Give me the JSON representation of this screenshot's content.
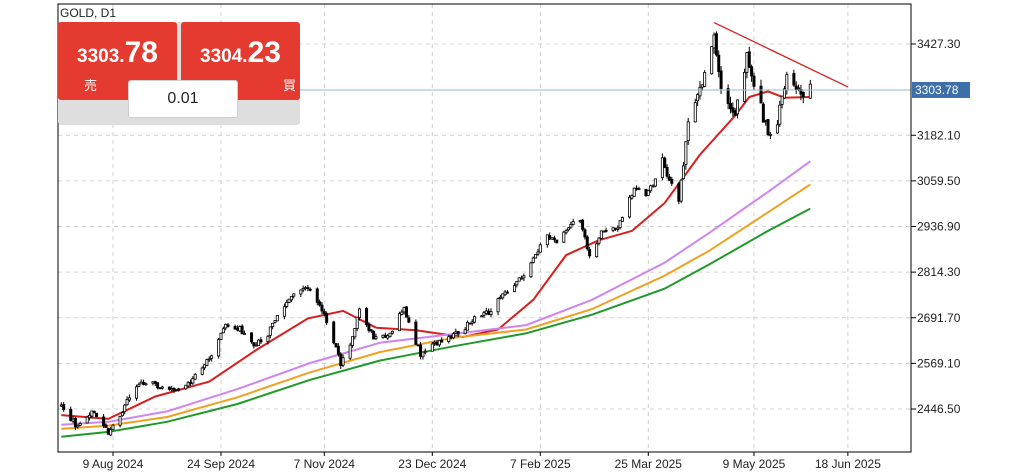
{
  "symbol_label": "GOLD, D1",
  "trade_panel": {
    "sell_price_small": "3303.",
    "sell_price_big": "78",
    "sell_label": "売",
    "buy_price_small": "3304.",
    "buy_price_big": "23",
    "buy_label": "買",
    "lot_size": "0.01"
  },
  "chart_data": {
    "type": "candlestick",
    "symbol": "GOLD",
    "timeframe": "D1",
    "y_tick_labels": [
      "3427.30",
      "3182.10",
      "3059.50",
      "2936.90",
      "2814.30",
      "2691.70",
      "2569.10",
      "2446.50"
    ],
    "y_ticks": [
      3427.3,
      3182.1,
      3059.5,
      2936.9,
      2814.3,
      2691.7,
      2569.1,
      2446.5
    ],
    "x_tick_labels": [
      "9 Aug 2024",
      "24 Sep 2024",
      "7 Nov 2024",
      "23 Dec 2024",
      "7 Feb 2025",
      "25 Mar 2025",
      "9 May 2025",
      "18 Jun 2025"
    ],
    "ylim": [
      2383,
      3481
    ],
    "current_price": 3303.78,
    "current_price_label": "3303.78",
    "colors": {
      "bull_body": "#ffffff",
      "bear_body": "#000000",
      "ma_red": "#d81e1e",
      "ma_violet": "#cf85ef",
      "ma_orange": "#f0a020",
      "ma_green": "#1f9a2a",
      "trendline": "#d81e1e",
      "price_line": "#9cb6cf",
      "price_tag": "#3d6fa8"
    },
    "price_path": [
      [
        "2024-07-18",
        2455
      ],
      [
        "2024-07-25",
        2398
      ],
      [
        "2024-07-31",
        2445
      ],
      [
        "2024-08-07",
        2382
      ],
      [
        "2024-08-14",
        2455
      ],
      [
        "2024-08-20",
        2512
      ],
      [
        "2024-08-26",
        2517
      ],
      [
        "2024-09-03",
        2494
      ],
      [
        "2024-09-10",
        2510
      ],
      [
        "2024-09-17",
        2565
      ],
      [
        "2024-09-23",
        2628
      ],
      [
        "2024-09-26",
        2676
      ],
      [
        "2024-10-02",
        2662
      ],
      [
        "2024-10-08",
        2612
      ],
      [
        "2024-10-14",
        2648
      ],
      [
        "2024-10-21",
        2725
      ],
      [
        "2024-10-30",
        2778
      ],
      [
        "2024-11-04",
        2740
      ],
      [
        "2024-11-08",
        2686
      ],
      [
        "2024-11-14",
        2568
      ],
      [
        "2024-11-18",
        2612
      ],
      [
        "2024-11-22",
        2712
      ],
      [
        "2024-11-28",
        2640
      ],
      [
        "2024-12-05",
        2650
      ],
      [
        "2024-12-11",
        2718
      ],
      [
        "2024-12-18",
        2592
      ],
      [
        "2024-12-26",
        2628
      ],
      [
        "2025-01-03",
        2652
      ],
      [
        "2025-01-10",
        2688
      ],
      [
        "2025-01-17",
        2712
      ],
      [
        "2025-01-22",
        2752
      ],
      [
        "2025-01-30",
        2798
      ],
      [
        "2025-02-05",
        2866
      ],
      [
        "2025-02-10",
        2908
      ],
      [
        "2025-02-14",
        2900
      ],
      [
        "2025-02-19",
        2940
      ],
      [
        "2025-02-24",
        2948
      ],
      [
        "2025-02-28",
        2860
      ],
      [
        "2025-03-05",
        2920
      ],
      [
        "2025-03-12",
        2938
      ],
      [
        "2025-03-19",
        3038
      ],
      [
        "2025-03-25",
        3025
      ],
      [
        "2025-03-31",
        3110
      ],
      [
        "2025-04-07",
        3002
      ],
      [
        "2025-04-11",
        3230
      ],
      [
        "2025-04-17",
        3330
      ],
      [
        "2025-04-22",
        3445
      ],
      [
        "2025-04-25",
        3300
      ],
      [
        "2025-05-01",
        3240
      ],
      [
        "2025-05-06",
        3395
      ],
      [
        "2025-05-09",
        3330
      ],
      [
        "2025-05-15",
        3185
      ],
      [
        "2025-05-19",
        3222
      ],
      [
        "2025-05-23",
        3352
      ],
      [
        "2025-05-29",
        3292
      ],
      [
        "2025-06-02",
        3303.78
      ]
    ],
    "moving_averages": [
      {
        "color_key": "ma_red",
        "points": [
          [
            "2024-07-18",
            2430
          ],
          [
            "2024-08-07",
            2420
          ],
          [
            "2024-08-27",
            2480
          ],
          [
            "2024-09-19",
            2520
          ],
          [
            "2024-10-09",
            2605
          ],
          [
            "2024-10-31",
            2690
          ],
          [
            "2024-11-15",
            2710
          ],
          [
            "2024-11-29",
            2665
          ],
          [
            "2024-12-16",
            2658
          ],
          [
            "2025-01-05",
            2640
          ],
          [
            "2025-01-20",
            2660
          ],
          [
            "2025-02-04",
            2740
          ],
          [
            "2025-02-18",
            2860
          ],
          [
            "2025-03-04",
            2900
          ],
          [
            "2025-03-18",
            2925
          ],
          [
            "2025-04-01",
            3000
          ],
          [
            "2025-04-16",
            3130
          ],
          [
            "2025-05-01",
            3235
          ],
          [
            "2025-05-07",
            3285
          ],
          [
            "2025-05-15",
            3300
          ],
          [
            "2025-05-22",
            3283
          ],
          [
            "2025-06-02",
            3285
          ]
        ]
      },
      {
        "color_key": "ma_violet",
        "points": [
          [
            "2024-07-18",
            2404
          ],
          [
            "2024-08-07",
            2412
          ],
          [
            "2024-09-01",
            2440
          ],
          [
            "2024-10-01",
            2500
          ],
          [
            "2024-11-01",
            2570
          ],
          [
            "2024-12-01",
            2625
          ],
          [
            "2025-01-01",
            2648
          ],
          [
            "2025-02-01",
            2672
          ],
          [
            "2025-03-01",
            2740
          ],
          [
            "2025-04-01",
            2840
          ],
          [
            "2025-04-20",
            2920
          ],
          [
            "2025-05-15",
            3030
          ],
          [
            "2025-06-02",
            3112
          ]
        ]
      },
      {
        "color_key": "ma_orange",
        "points": [
          [
            "2024-07-18",
            2393
          ],
          [
            "2024-08-07",
            2402
          ],
          [
            "2024-09-01",
            2425
          ],
          [
            "2024-10-01",
            2478
          ],
          [
            "2024-11-01",
            2545
          ],
          [
            "2024-12-01",
            2600
          ],
          [
            "2025-01-01",
            2638
          ],
          [
            "2025-02-01",
            2660
          ],
          [
            "2025-03-01",
            2715
          ],
          [
            "2025-04-01",
            2805
          ],
          [
            "2025-04-20",
            2872
          ],
          [
            "2025-05-15",
            2975
          ],
          [
            "2025-06-02",
            3050
          ]
        ]
      },
      {
        "color_key": "ma_green",
        "points": [
          [
            "2024-07-18",
            2372
          ],
          [
            "2024-08-07",
            2385
          ],
          [
            "2024-09-01",
            2412
          ],
          [
            "2024-10-01",
            2460
          ],
          [
            "2024-11-01",
            2525
          ],
          [
            "2024-12-01",
            2577
          ],
          [
            "2025-01-01",
            2615
          ],
          [
            "2025-02-01",
            2650
          ],
          [
            "2025-03-01",
            2700
          ],
          [
            "2025-04-01",
            2770
          ],
          [
            "2025-04-20",
            2835
          ],
          [
            "2025-05-15",
            2925
          ],
          [
            "2025-06-02",
            2985
          ]
        ]
      }
    ],
    "trendline": [
      [
        "2025-04-22",
        3485
      ],
      [
        "2025-06-18",
        3312
      ]
    ]
  }
}
